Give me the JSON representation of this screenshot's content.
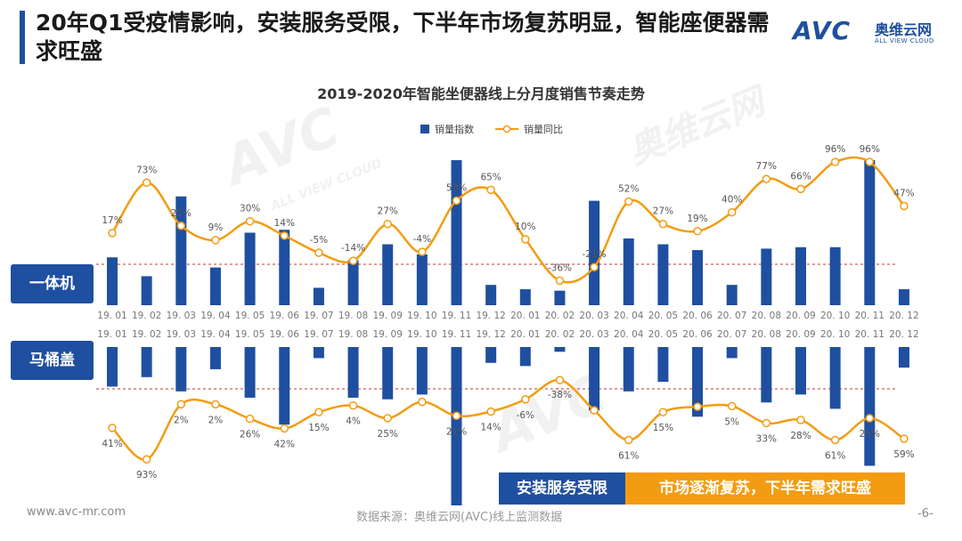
{
  "page": {
    "title": "20年Q1受疫情影响，安装服务受限，下半年市场复苏明显，智能座便器需求旺盛",
    "logo_text": "AVC",
    "logo_cn": "奥维云网",
    "logo_en": "ALL VIEW CLOUD",
    "watermark_en": "ALL VIEW CLOUD",
    "watermark_cn": "奥维云网",
    "panel_top_label": "一体机",
    "panel_bottom_label": "马桶盖",
    "banner_left": "安装服务受限",
    "banner_right": "市场逐渐复苏，下半年需求旺盛",
    "footer_url": "www.avc-mr.com",
    "footer_source": "数据来源：奥维云网(AVC)线上监测数据",
    "page_number": "-6-"
  },
  "colors": {
    "bar": "#1f4fa0",
    "line": "#f39c12",
    "title_accent": "#1f4fa0",
    "dashed_line": "#c0392b"
  },
  "chart_data": [
    {
      "type": "bar",
      "title": "2019-2020年智能坐便器线上分月度销售节奏走势",
      "panel": "一体机",
      "categories": [
        "19. 01",
        "19. 02",
        "19. 03",
        "19. 04",
        "19. 05",
        "19. 06",
        "19. 07",
        "19. 08",
        "19. 09",
        "19. 10",
        "19. 11",
        "19. 12",
        "20. 01",
        "20. 02",
        "20. 03",
        "20. 04",
        "20. 05",
        "20. 06",
        "20. 07",
        "20. 08",
        "20. 09",
        "20. 10",
        "20. 11",
        "20. 12"
      ],
      "legend": [
        "销量指数",
        "销量同比"
      ],
      "legend_position": "top",
      "series": [
        {
          "name": "销量指数",
          "type": "bar",
          "values": [
            33,
            20,
            75,
            26,
            50,
            52,
            12,
            31,
            42,
            35,
            100,
            14,
            11,
            10,
            72,
            46,
            42,
            38,
            14,
            39,
            40,
            40,
            100,
            11
          ]
        },
        {
          "name": "销量同比",
          "type": "line",
          "values": [
            17,
            73,
            25,
            9,
            30,
            14,
            -5,
            -14,
            27,
            -4,
            53,
            65,
            10,
            -36,
            -21,
            52,
            27,
            19,
            40,
            77,
            66,
            96,
            96,
            47
          ],
          "labels": [
            "17%",
            "73%",
            "25%",
            "9%",
            "30%",
            "14%",
            "-5%",
            "-14%",
            "27%",
            "-4%",
            "53%",
            "65%",
            "10%",
            "-36%",
            "-21%",
            "52%",
            "27%",
            "19%",
            "40%",
            "77%",
            "66%",
            "96%",
            "96%",
            "47%"
          ]
        }
      ]
    },
    {
      "type": "bar",
      "panel": "马桶盖",
      "categories": [
        "19. 01",
        "19. 02",
        "19. 03",
        "19. 04",
        "19. 05",
        "19. 06",
        "19. 07",
        "19. 08",
        "19. 09",
        "19. 10",
        "19. 11",
        "19. 12",
        "20. 01",
        "20. 02",
        "20. 03",
        "20. 04",
        "20. 05",
        "20. 06",
        "20. 07",
        "20. 08",
        "20. 09",
        "20. 10",
        "20. 11",
        "20. 12"
      ],
      "series": [
        {
          "name": "销量指数",
          "type": "bar",
          "values": [
            25,
            19,
            28,
            14,
            32,
            49,
            7,
            32,
            33,
            30,
            100,
            10,
            12,
            3,
            40,
            28,
            22,
            44,
            7,
            35,
            30,
            39,
            75,
            13
          ]
        },
        {
          "name": "销量同比",
          "type": "line",
          "values": [
            41,
            93,
            2,
            2,
            26,
            42,
            15,
            4,
            25,
            -2,
            21,
            14,
            -6,
            -38,
            12,
            61,
            15,
            6,
            5,
            33,
            28,
            61,
            25,
            59
          ],
          "labels": [
            "41%",
            "93%",
            "2%",
            "2%",
            "26%",
            "42%",
            "15%",
            "4%",
            "25%",
            "",
            "21%",
            "14%",
            "-6%",
            "-38%",
            "",
            "61%",
            "15%",
            "",
            "5%",
            "33%",
            "28%",
            "61%",
            "25%",
            "59%"
          ]
        }
      ]
    }
  ]
}
